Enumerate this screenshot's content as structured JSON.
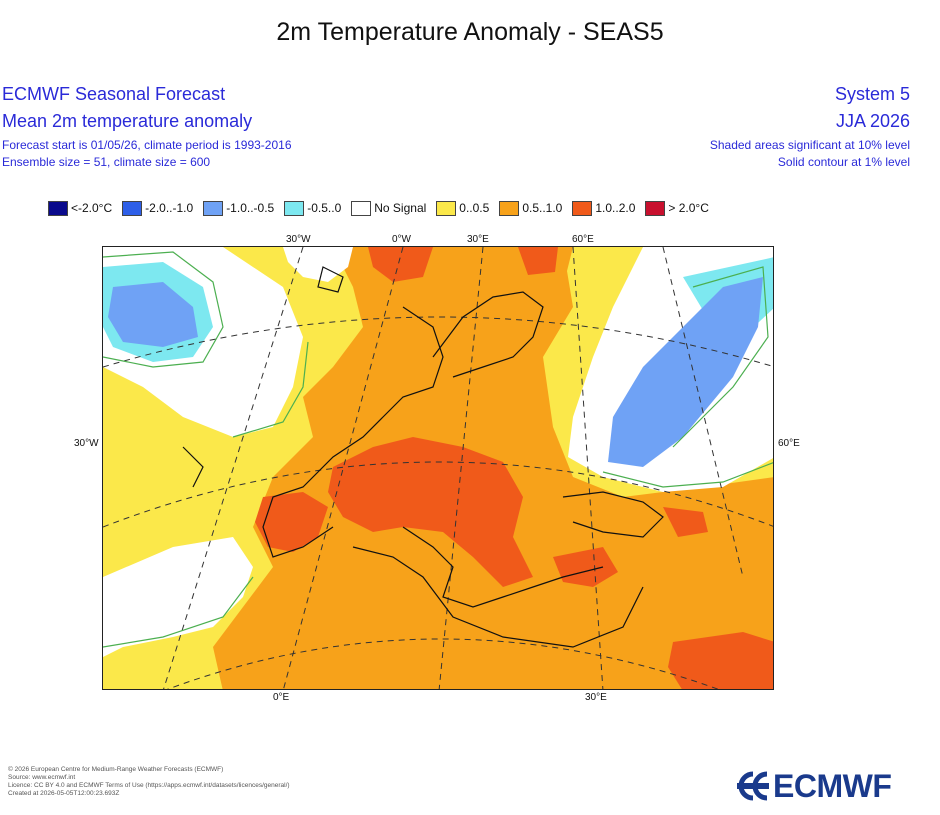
{
  "title": "2m Temperature Anomaly - SEAS5",
  "header": {
    "left_line1": "ECMWF Seasonal Forecast",
    "left_line2": "Mean 2m temperature anomaly",
    "left_line3": "Forecast start is 01/05/26, climate period is 1993-2016",
    "left_line4": "Ensemble size = 51, climate size = 600",
    "right_line1": "System 5",
    "right_line2": "JJA 2026",
    "right_line3": "Shaded areas significant at 10% level",
    "right_line4": "Solid contour at 1% level"
  },
  "legend": [
    {
      "label": "<-2.0°C",
      "color": "#0a0a8c"
    },
    {
      "label": "-2.0..-1.0",
      "color": "#2e5fe8"
    },
    {
      "label": "-1.0..-0.5",
      "color": "#6fa2f5"
    },
    {
      "label": "-0.5..0",
      "color": "#7de8f0"
    },
    {
      "label": "No Signal",
      "color": "#ffffff"
    },
    {
      "label": "0..0.5",
      "color": "#fbe84a"
    },
    {
      "label": "0.5..1.0",
      "color": "#f7a21a"
    },
    {
      "label": "1.0..2.0",
      "color": "#f05a1a"
    },
    {
      "label": "> 2.0°C",
      "color": "#c8102e"
    }
  ],
  "axis_labels": {
    "top": [
      "30°W",
      "0°W",
      "30°E",
      "60°E"
    ],
    "bottom": [
      "0°E",
      "30°E"
    ],
    "left": "30°W",
    "right": "60°E"
  },
  "footer": [
    "© 2026 European Centre for Medium-Range Weather Forecasts (ECMWF)",
    "Source: www.ecmwf.int",
    "Licence: CC BY 4.0 and ECMWF Terms of Use (https://apps.ecmwf.int/datasets/licences/general/)",
    "Created at 2026-05-05T12:00:23.693Z"
  ],
  "logo_text": "ECMWF"
}
